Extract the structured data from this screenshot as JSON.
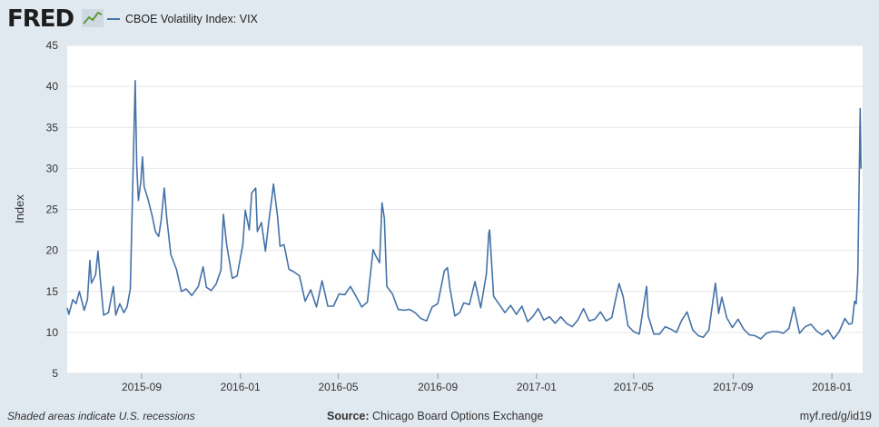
{
  "header": {
    "logo_text": "FRED",
    "logo_icon": "line-chart-icon",
    "legend_label": "CBOE Volatility Index: VIX",
    "series_color": "#4572a7"
  },
  "footer": {
    "recession_note": "Shaded areas indicate U.S. recessions",
    "source_label": "Source:",
    "source_value": "Chicago Board Options Exchange",
    "short_url": "myf.red/g/id19"
  },
  "chart_data": {
    "type": "line",
    "title": "",
    "xlabel": "",
    "ylabel": "Index",
    "ylim": [
      5,
      45
    ],
    "yticks": [
      5,
      10,
      15,
      20,
      25,
      30,
      35,
      40,
      45
    ],
    "xlim": [
      "2015-06-01",
      "2018-02-08"
    ],
    "xticks": [
      {
        "date": "2015-09-01",
        "label": "2015-09"
      },
      {
        "date": "2016-01-01",
        "label": "2016-01"
      },
      {
        "date": "2016-05-01",
        "label": "2016-05"
      },
      {
        "date": "2016-09-01",
        "label": "2016-09"
      },
      {
        "date": "2017-01-01",
        "label": "2017-01"
      },
      {
        "date": "2017-05-01",
        "label": "2017-05"
      },
      {
        "date": "2017-09-01",
        "label": "2017-09"
      },
      {
        "date": "2018-01-01",
        "label": "2018-01"
      }
    ],
    "grid": "horizontal",
    "series": [
      {
        "name": "CBOE Volatility Index: VIX",
        "color": "#4572a7",
        "points": [
          [
            "2015-06-01",
            13.0
          ],
          [
            "2015-06-03",
            12.2
          ],
          [
            "2015-06-08",
            14.0
          ],
          [
            "2015-06-12",
            13.5
          ],
          [
            "2015-06-16",
            15.0
          ],
          [
            "2015-06-22",
            12.7
          ],
          [
            "2015-06-26",
            14.0
          ],
          [
            "2015-06-29",
            18.8
          ],
          [
            "2015-07-01",
            16.0
          ],
          [
            "2015-07-06",
            17.0
          ],
          [
            "2015-07-09",
            19.9
          ],
          [
            "2015-07-12",
            16.4
          ],
          [
            "2015-07-16",
            12.1
          ],
          [
            "2015-07-22",
            12.4
          ],
          [
            "2015-07-28",
            15.6
          ],
          [
            "2015-07-31",
            12.1
          ],
          [
            "2015-08-05",
            13.5
          ],
          [
            "2015-08-10",
            12.4
          ],
          [
            "2015-08-14",
            13.1
          ],
          [
            "2015-08-18",
            15.3
          ],
          [
            "2015-08-21",
            28.0
          ],
          [
            "2015-08-24",
            40.7
          ],
          [
            "2015-08-26",
            30.3
          ],
          [
            "2015-08-28",
            26.1
          ],
          [
            "2015-08-31",
            28.4
          ],
          [
            "2015-09-02",
            31.4
          ],
          [
            "2015-09-04",
            27.8
          ],
          [
            "2015-09-09",
            26.2
          ],
          [
            "2015-09-14",
            24.2
          ],
          [
            "2015-09-18",
            22.3
          ],
          [
            "2015-09-22",
            21.7
          ],
          [
            "2015-09-25",
            23.6
          ],
          [
            "2015-09-29",
            27.6
          ],
          [
            "2015-10-02",
            24.0
          ],
          [
            "2015-10-07",
            19.5
          ],
          [
            "2015-10-14",
            17.7
          ],
          [
            "2015-10-20",
            15.0
          ],
          [
            "2015-10-26",
            15.3
          ],
          [
            "2015-11-02",
            14.5
          ],
          [
            "2015-11-10",
            15.6
          ],
          [
            "2015-11-16",
            18.0
          ],
          [
            "2015-11-20",
            15.5
          ],
          [
            "2015-11-26",
            15.1
          ],
          [
            "2015-12-02",
            15.9
          ],
          [
            "2015-12-08",
            17.6
          ],
          [
            "2015-12-11",
            24.4
          ],
          [
            "2015-12-15",
            20.7
          ],
          [
            "2015-12-22",
            16.6
          ],
          [
            "2015-12-28",
            16.9
          ],
          [
            "2016-01-04",
            20.7
          ],
          [
            "2016-01-07",
            24.9
          ],
          [
            "2016-01-12",
            22.5
          ],
          [
            "2016-01-15",
            27.0
          ],
          [
            "2016-01-20",
            27.6
          ],
          [
            "2016-01-22",
            22.3
          ],
          [
            "2016-01-27",
            23.4
          ],
          [
            "2016-02-01",
            19.9
          ],
          [
            "2016-02-05",
            23.4
          ],
          [
            "2016-02-09",
            26.5
          ],
          [
            "2016-02-11",
            28.1
          ],
          [
            "2016-02-16",
            24.1
          ],
          [
            "2016-02-19",
            20.5
          ],
          [
            "2016-02-24",
            20.7
          ],
          [
            "2016-03-01",
            17.7
          ],
          [
            "2016-03-07",
            17.4
          ],
          [
            "2016-03-14",
            16.9
          ],
          [
            "2016-03-21",
            13.8
          ],
          [
            "2016-03-28",
            15.2
          ],
          [
            "2016-04-04",
            13.1
          ],
          [
            "2016-04-11",
            16.3
          ],
          [
            "2016-04-18",
            13.2
          ],
          [
            "2016-04-25",
            13.2
          ],
          [
            "2016-05-02",
            14.7
          ],
          [
            "2016-05-09",
            14.6
          ],
          [
            "2016-05-16",
            15.6
          ],
          [
            "2016-05-23",
            14.4
          ],
          [
            "2016-05-30",
            13.1
          ],
          [
            "2016-06-06",
            13.7
          ],
          [
            "2016-06-13",
            20.1
          ],
          [
            "2016-06-16",
            19.4
          ],
          [
            "2016-06-21",
            18.5
          ],
          [
            "2016-06-24",
            25.8
          ],
          [
            "2016-06-27",
            23.9
          ],
          [
            "2016-06-30",
            15.6
          ],
          [
            "2016-07-07",
            14.7
          ],
          [
            "2016-07-14",
            12.8
          ],
          [
            "2016-07-21",
            12.7
          ],
          [
            "2016-07-28",
            12.8
          ],
          [
            "2016-08-04",
            12.4
          ],
          [
            "2016-08-11",
            11.7
          ],
          [
            "2016-08-18",
            11.4
          ],
          [
            "2016-08-25",
            13.1
          ],
          [
            "2016-09-01",
            13.5
          ],
          [
            "2016-09-09",
            17.5
          ],
          [
            "2016-09-13",
            17.9
          ],
          [
            "2016-09-16",
            15.4
          ],
          [
            "2016-09-22",
            12.0
          ],
          [
            "2016-09-28",
            12.4
          ],
          [
            "2016-10-03",
            13.6
          ],
          [
            "2016-10-10",
            13.4
          ],
          [
            "2016-10-17",
            16.2
          ],
          [
            "2016-10-24",
            13.0
          ],
          [
            "2016-10-31",
            17.1
          ],
          [
            "2016-11-03",
            22.1
          ],
          [
            "2016-11-04",
            22.5
          ],
          [
            "2016-11-09",
            14.4
          ],
          [
            "2016-11-16",
            13.4
          ],
          [
            "2016-11-23",
            12.4
          ],
          [
            "2016-11-30",
            13.3
          ],
          [
            "2016-12-07",
            12.2
          ],
          [
            "2016-12-14",
            13.2
          ],
          [
            "2016-12-21",
            11.3
          ],
          [
            "2016-12-28",
            12.0
          ],
          [
            "2017-01-03",
            12.9
          ],
          [
            "2017-01-10",
            11.5
          ],
          [
            "2017-01-17",
            11.9
          ],
          [
            "2017-01-24",
            11.1
          ],
          [
            "2017-01-31",
            11.9
          ],
          [
            "2017-02-07",
            11.1
          ],
          [
            "2017-02-14",
            10.7
          ],
          [
            "2017-02-21",
            11.5
          ],
          [
            "2017-02-28",
            12.9
          ],
          [
            "2017-03-07",
            11.4
          ],
          [
            "2017-03-14",
            11.6
          ],
          [
            "2017-03-21",
            12.5
          ],
          [
            "2017-03-28",
            11.4
          ],
          [
            "2017-04-04",
            11.8
          ],
          [
            "2017-04-11",
            15.1
          ],
          [
            "2017-04-13",
            15.96
          ],
          [
            "2017-04-18",
            14.4
          ],
          [
            "2017-04-24",
            10.8
          ],
          [
            "2017-05-01",
            10.1
          ],
          [
            "2017-05-08",
            9.8
          ],
          [
            "2017-05-17",
            15.6
          ],
          [
            "2017-05-19",
            12.0
          ],
          [
            "2017-05-26",
            9.8
          ],
          [
            "2017-06-02",
            9.8
          ],
          [
            "2017-06-09",
            10.7
          ],
          [
            "2017-06-16",
            10.4
          ],
          [
            "2017-06-23",
            10.0
          ],
          [
            "2017-06-29",
            11.4
          ],
          [
            "2017-07-06",
            12.5
          ],
          [
            "2017-07-13",
            10.3
          ],
          [
            "2017-07-20",
            9.6
          ],
          [
            "2017-07-26",
            9.4
          ],
          [
            "2017-08-02",
            10.3
          ],
          [
            "2017-08-10",
            16.0
          ],
          [
            "2017-08-14",
            12.3
          ],
          [
            "2017-08-18",
            14.3
          ],
          [
            "2017-08-24",
            11.8
          ],
          [
            "2017-08-31",
            10.6
          ],
          [
            "2017-09-07",
            11.6
          ],
          [
            "2017-09-14",
            10.4
          ],
          [
            "2017-09-21",
            9.7
          ],
          [
            "2017-09-28",
            9.6
          ],
          [
            "2017-10-05",
            9.2
          ],
          [
            "2017-10-12",
            9.9
          ],
          [
            "2017-10-19",
            10.1
          ],
          [
            "2017-10-26",
            10.1
          ],
          [
            "2017-11-02",
            9.9
          ],
          [
            "2017-11-09",
            10.5
          ],
          [
            "2017-11-15",
            13.1
          ],
          [
            "2017-11-22",
            9.9
          ],
          [
            "2017-11-29",
            10.7
          ],
          [
            "2017-12-06",
            11.0
          ],
          [
            "2017-12-13",
            10.2
          ],
          [
            "2017-12-20",
            9.7
          ],
          [
            "2017-12-27",
            10.3
          ],
          [
            "2018-01-03",
            9.2
          ],
          [
            "2018-01-10",
            10.1
          ],
          [
            "2018-01-17",
            11.7
          ],
          [
            "2018-01-22",
            11.0
          ],
          [
            "2018-01-26",
            11.1
          ],
          [
            "2018-01-29",
            13.8
          ],
          [
            "2018-01-31",
            13.5
          ],
          [
            "2018-02-02",
            17.3
          ],
          [
            "2018-02-05",
            37.3
          ],
          [
            "2018-02-06",
            29.98
          ]
        ]
      }
    ]
  }
}
